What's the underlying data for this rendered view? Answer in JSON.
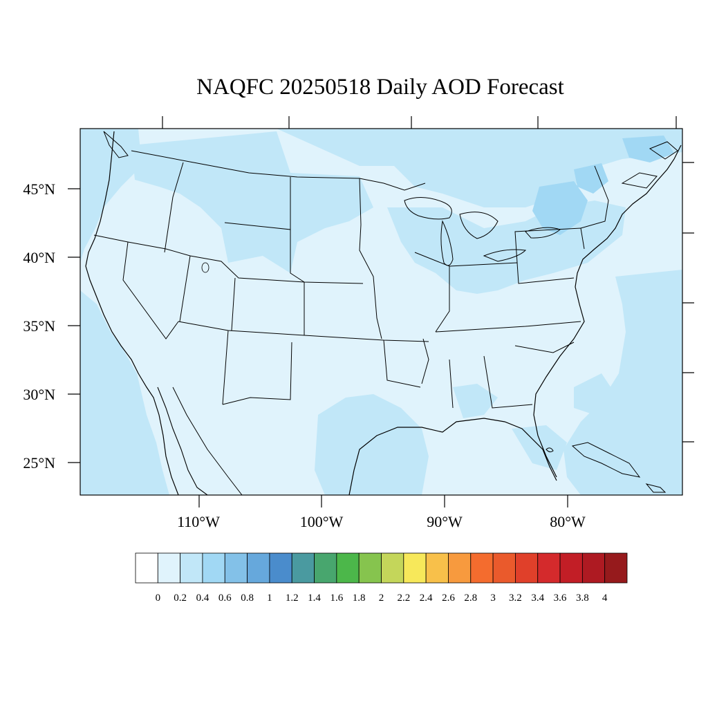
{
  "title": "NAQFC 20250518 Daily AOD Forecast",
  "lat_labels": [
    "45°N",
    "40°N",
    "35°N",
    "30°N",
    "25°N"
  ],
  "lat_values": [
    45,
    40,
    35,
    30,
    25
  ],
  "lon_labels": [
    "110°W",
    "100°W",
    "90°W",
    "80°W"
  ],
  "lon_values": [
    -110,
    -100,
    -90,
    -80
  ],
  "colorbar": {
    "levels": [
      "0",
      "0.2",
      "0.4",
      "0.6",
      "0.8",
      "1",
      "1.2",
      "1.4",
      "1.6",
      "1.8",
      "2",
      "2.2",
      "2.4",
      "2.6",
      "2.8",
      "3",
      "3.2",
      "3.4",
      "3.6",
      "3.8",
      "4"
    ],
    "colors": [
      "#ffffff",
      "#e0f3fc",
      "#c1e7f8",
      "#a1d8f4",
      "#83c1e8",
      "#66a8dc",
      "#4a8ccc",
      "#4a9aa0",
      "#48a66e",
      "#4cb74a",
      "#86c44e",
      "#c4d65a",
      "#f7e85a",
      "#f8c04a",
      "#f79a3e",
      "#f46c2e",
      "#ea5a2c",
      "#e0402a",
      "#d42a2c",
      "#c21e26",
      "#ae1a22",
      "#961a1c"
    ]
  },
  "map": {
    "background_color": "#e0f3fc",
    "field_color": "#c1e7f8",
    "field_color_high": "#a1d8f4"
  }
}
